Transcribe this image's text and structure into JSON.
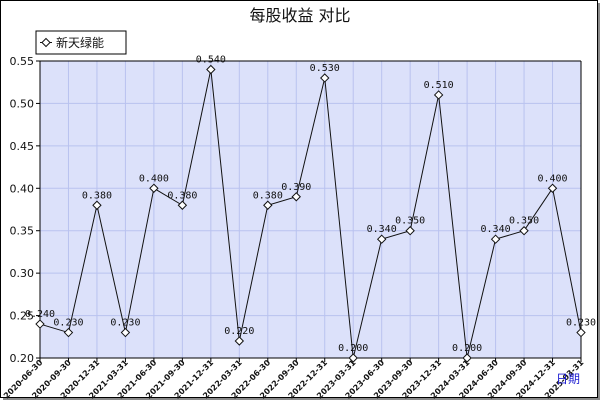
{
  "chart_data": {
    "type": "line",
    "title": "每股收益  对比",
    "xlabel": "日期",
    "ylabel": "",
    "ylim": [
      0.2,
      0.55
    ],
    "yticks": [
      "0.20",
      "0.25",
      "0.30",
      "0.35",
      "0.40",
      "0.45",
      "0.50",
      "0.55"
    ],
    "grid": true,
    "legend_position": "top-left",
    "categories": [
      "2020-06-30",
      "2020-09-30",
      "2020-12-31",
      "2021-03-31",
      "2021-06-30",
      "2021-09-30",
      "2021-12-31",
      "2022-03-31",
      "2022-06-30",
      "2022-09-30",
      "2022-12-31",
      "2023-03-31",
      "2023-06-30",
      "2023-09-30",
      "2023-12-31",
      "2024-03-31",
      "2024-06-30",
      "2024-09-30",
      "2024-12-31",
      "2025-03-31"
    ],
    "series": [
      {
        "name": "新天绿能",
        "values": [
          0.24,
          0.23,
          0.38,
          0.23,
          0.4,
          0.38,
          0.54,
          0.22,
          0.38,
          0.39,
          0.53,
          0.2,
          0.34,
          0.35,
          0.51,
          0.2,
          0.34,
          0.35,
          0.4,
          0.23
        ],
        "labels": [
          "0.240",
          "0.230",
          "0.380",
          "0.230",
          "0.400",
          "0.380",
          "0.540",
          "0.220",
          "0.380",
          "0.390",
          "0.530",
          "0.200",
          "0.340",
          "0.350",
          "0.510",
          "0.200",
          "0.340",
          "0.350",
          "0.400",
          "0.230"
        ]
      }
    ]
  },
  "colors": {
    "plot_background": "#dce1fa",
    "grid": "#b9c2ef",
    "line": "#111111",
    "marker_fill": "#ffffff",
    "xlabel": "#1e1ed2"
  },
  "legend_marker_icon": "diamond-icon"
}
